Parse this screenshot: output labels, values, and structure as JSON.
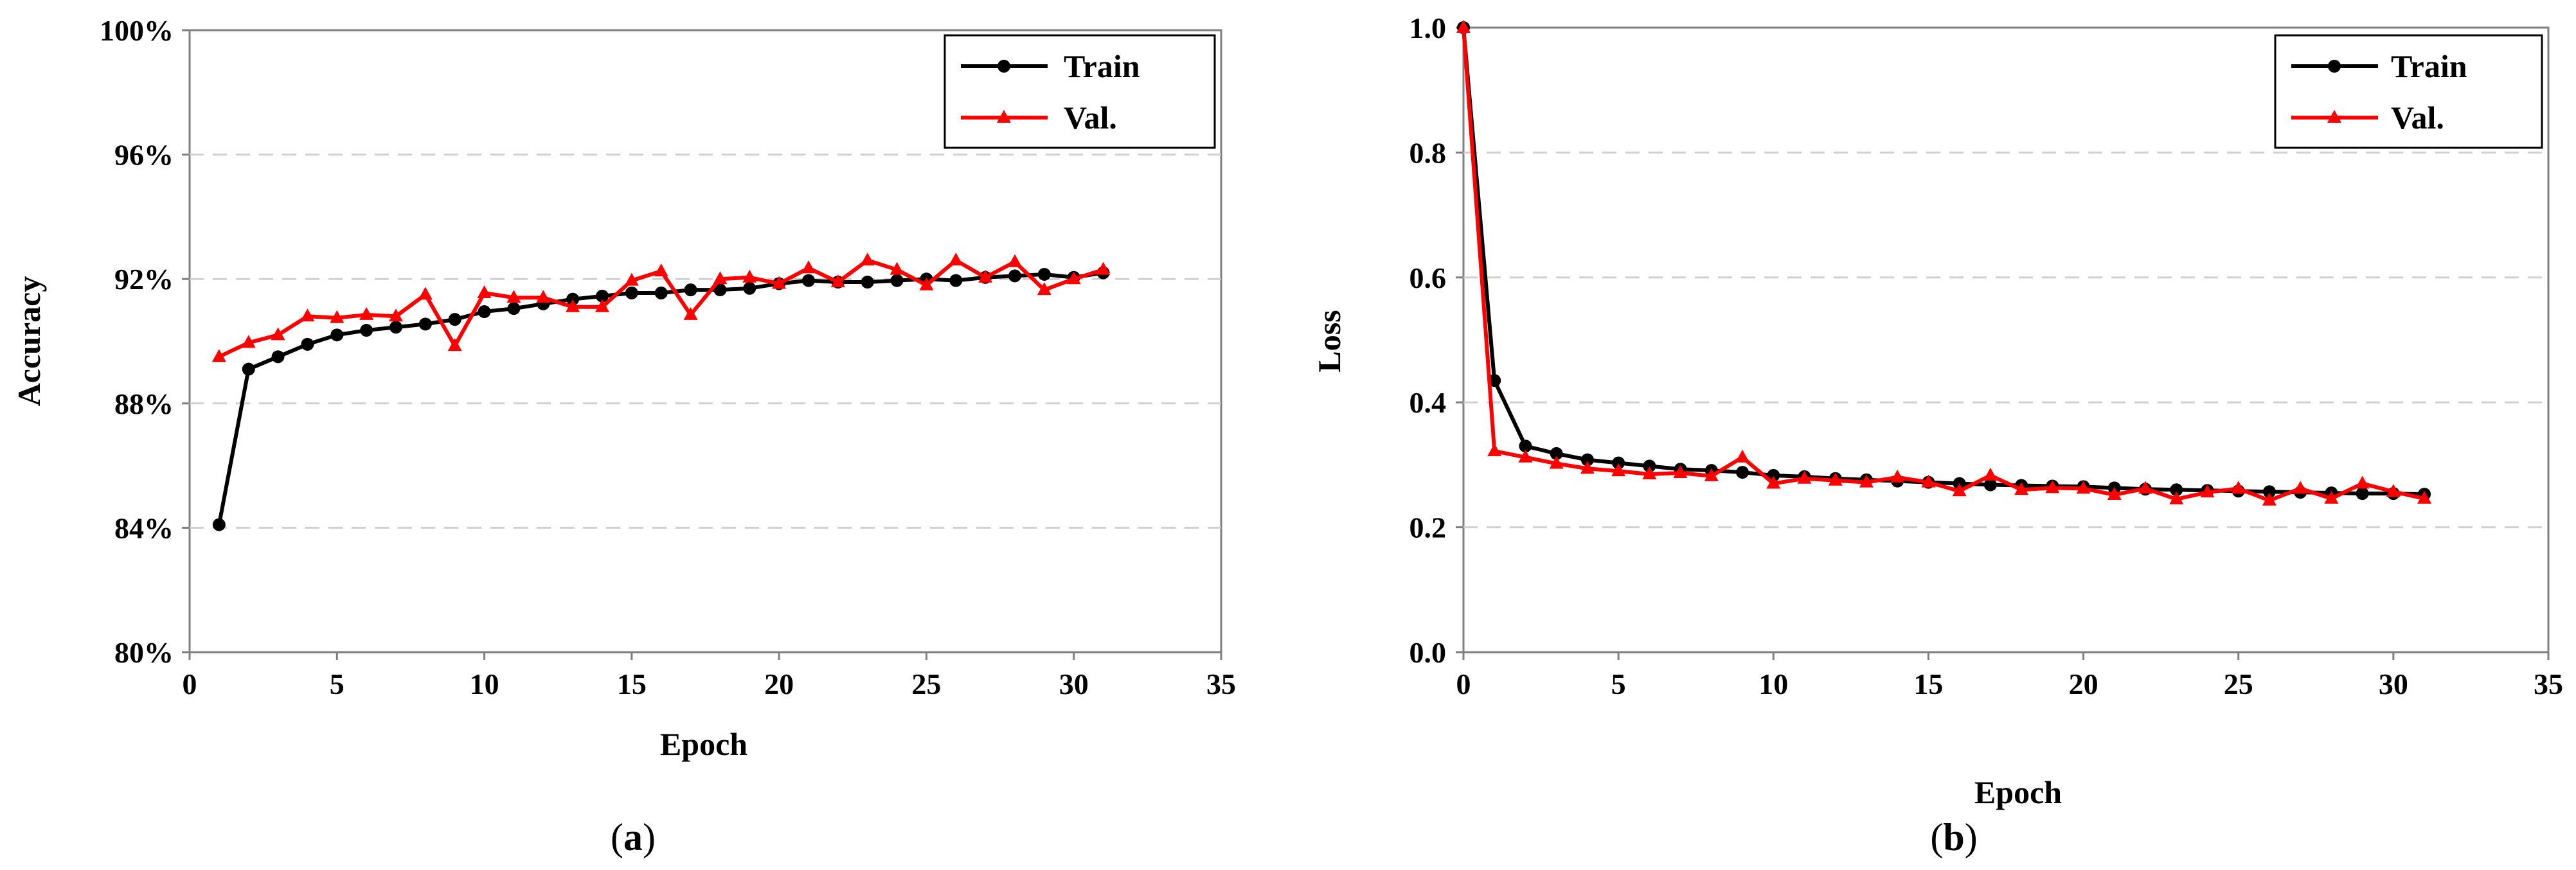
{
  "chart_data": [
    {
      "type": "line",
      "panel_label": "a",
      "xlabel": "Epoch",
      "ylabel": "Accuracy",
      "xlim": [
        0,
        35
      ],
      "ylim": [
        80,
        100
      ],
      "xticks": [
        0,
        5,
        10,
        15,
        20,
        25,
        30,
        35
      ],
      "yticks": [
        80,
        84,
        88,
        92,
        96,
        100
      ],
      "ytick_labels": [
        "80%",
        "84%",
        "88%",
        "92%",
        "96%",
        "100%"
      ],
      "xtick_labels": [
        "0",
        "5",
        "10",
        "15",
        "20",
        "25",
        "30",
        "35"
      ],
      "grid": "horizontal-dashed",
      "legend": "top-right",
      "x": [
        1,
        2,
        3,
        4,
        5,
        6,
        7,
        8,
        9,
        10,
        11,
        12,
        13,
        14,
        15,
        16,
        17,
        18,
        19,
        20,
        21,
        22,
        23,
        24,
        25,
        26,
        27,
        28,
        29,
        30,
        31
      ],
      "series": [
        {
          "name": "Train",
          "color": "#000000",
          "marker": "circle",
          "values": [
            84.1,
            89.1,
            89.5,
            89.9,
            90.2,
            90.35,
            90.45,
            90.55,
            90.7,
            90.95,
            91.05,
            91.2,
            91.35,
            91.45,
            91.55,
            91.55,
            91.65,
            91.65,
            91.7,
            91.85,
            91.95,
            91.9,
            91.9,
            91.95,
            92.0,
            91.95,
            92.05,
            92.1,
            92.15,
            92.05,
            92.2
          ]
        },
        {
          "name": "Val.",
          "color": "#ff0000",
          "marker": "triangle",
          "values": [
            89.5,
            89.95,
            90.2,
            90.8,
            90.75,
            90.85,
            90.8,
            91.5,
            89.85,
            91.55,
            91.4,
            91.4,
            91.1,
            91.1,
            91.95,
            92.25,
            90.85,
            92.0,
            92.05,
            91.85,
            92.35,
            91.9,
            92.6,
            92.3,
            91.8,
            92.6,
            92.05,
            92.55,
            91.65,
            92.0,
            92.3
          ]
        }
      ]
    },
    {
      "type": "line",
      "panel_label": "b",
      "xlabel": "Epoch",
      "ylabel": "Loss",
      "xlim": [
        0,
        35
      ],
      "ylim": [
        0,
        1.0
      ],
      "xticks": [
        0,
        5,
        10,
        15,
        20,
        25,
        30,
        35
      ],
      "yticks": [
        0,
        0.2,
        0.4,
        0.6,
        0.8,
        1.0
      ],
      "ytick_labels": [
        "0.0",
        "0.2",
        "0.4",
        "0.6",
        "0.8",
        "1.0"
      ],
      "xtick_labels": [
        "0",
        "5",
        "10",
        "15",
        "20",
        "25",
        "30",
        "35"
      ],
      "grid": "horizontal-dashed",
      "legend": "top-right",
      "x": [
        0,
        1,
        2,
        3,
        4,
        5,
        6,
        7,
        8,
        9,
        10,
        11,
        12,
        13,
        14,
        15,
        16,
        17,
        18,
        19,
        20,
        21,
        22,
        23,
        24,
        25,
        26,
        27,
        28,
        29,
        30,
        31
      ],
      "series": [
        {
          "name": "Train",
          "color": "#000000",
          "marker": "circle",
          "values": [
            1.0,
            0.435,
            0.33,
            0.318,
            0.308,
            0.303,
            0.298,
            0.293,
            0.291,
            0.288,
            0.283,
            0.281,
            0.278,
            0.276,
            0.274,
            0.272,
            0.27,
            0.268,
            0.267,
            0.266,
            0.265,
            0.263,
            0.261,
            0.26,
            0.259,
            0.258,
            0.257,
            0.256,
            0.255,
            0.254,
            0.254,
            0.253
          ]
        },
        {
          "name": "Val.",
          "color": "#ff0000",
          "marker": "triangle",
          "values": [
            1.0,
            0.322,
            0.312,
            0.302,
            0.294,
            0.29,
            0.285,
            0.287,
            0.282,
            0.312,
            0.27,
            0.278,
            0.275,
            0.272,
            0.28,
            0.272,
            0.258,
            0.283,
            0.26,
            0.263,
            0.262,
            0.252,
            0.262,
            0.245,
            0.256,
            0.262,
            0.243,
            0.262,
            0.246,
            0.27,
            0.257,
            0.246
          ]
        }
      ]
    }
  ]
}
